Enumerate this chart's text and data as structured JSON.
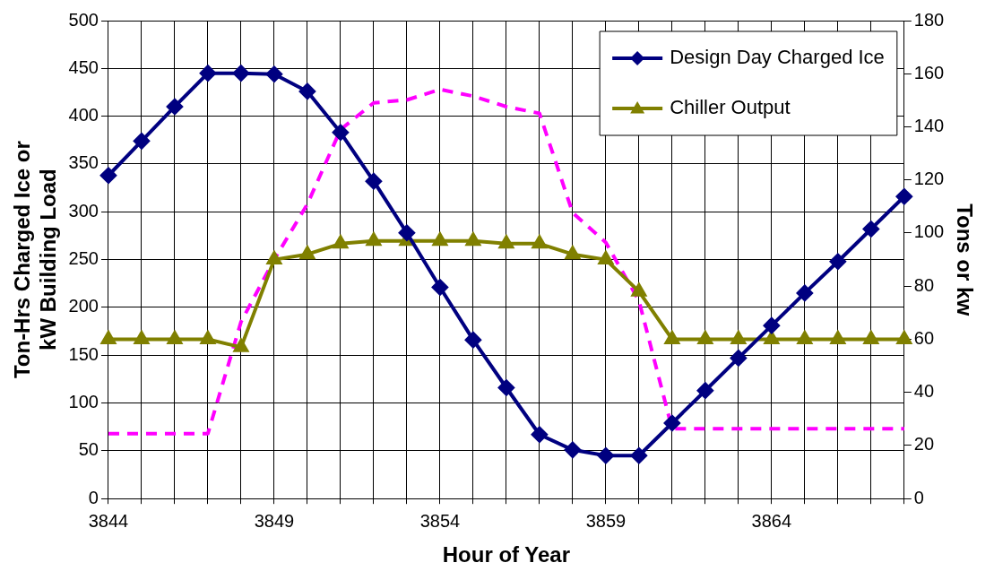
{
  "chart_data": {
    "type": "line",
    "xlabel": "Hour of Year",
    "ylabel": "Ton-Hrs Charged Ice or kW Building Load",
    "y2label": "Tons or kw",
    "x": [
      3844,
      3845,
      3846,
      3847,
      3848,
      3849,
      3850,
      3851,
      3852,
      3853,
      3854,
      3855,
      3856,
      3857,
      3858,
      3859,
      3860,
      3861,
      3862,
      3863,
      3864,
      3865,
      3866,
      3867,
      3868
    ],
    "series": [
      {
        "name": "Design Day Charged Ice",
        "color": "#000080",
        "marker": "diamond",
        "line_style": "solid",
        "values": [
          338,
          374,
          410,
          445,
          445,
          444,
          426,
          383,
          332,
          278,
          221,
          166,
          116,
          67,
          51,
          45,
          45,
          79,
          113,
          147,
          181,
          215,
          248,
          282,
          316
        ]
      },
      {
        "name": "Chiller Output",
        "color": "#808000",
        "marker": "triangle",
        "line_style": "solid",
        "axis": "y2",
        "values": [
          60,
          60,
          60,
          60,
          57,
          90,
          92,
          96,
          97,
          97,
          97,
          97,
          96,
          96,
          92,
          90,
          78,
          60,
          60,
          60,
          60,
          60,
          60,
          60,
          60
        ]
      },
      {
        "color": "#ff00ff",
        "marker": "none",
        "line_style": "dashed",
        "values": [
          68,
          68,
          68,
          68,
          185,
          250,
          308,
          386,
          414,
          417,
          428,
          421,
          410,
          403,
          299,
          268,
          207,
          73,
          73,
          73,
          73,
          73,
          73,
          73,
          73
        ]
      }
    ],
    "xlim": [
      3844,
      3868
    ],
    "xticks": [
      3844,
      {
        "value": 3845,
        "label": null
      },
      {
        "value": 3846,
        "label": null
      },
      {
        "value": 3847,
        "label": null
      },
      {
        "value": 3848,
        "label": null
      },
      3849,
      {
        "value": 3850,
        "label": null
      },
      {
        "value": 3851,
        "label": null
      },
      {
        "value": 3852,
        "label": null
      },
      {
        "value": 3853,
        "label": null
      },
      3854,
      {
        "value": 3855,
        "label": null
      },
      {
        "value": 3856,
        "label": null
      },
      {
        "value": 3857,
        "label": null
      },
      {
        "value": 3858,
        "label": null
      },
      3859,
      {
        "value": 3860,
        "label": null
      },
      {
        "value": 3861,
        "label": null
      },
      {
        "value": 3862,
        "label": null
      },
      {
        "value": 3863,
        "label": null
      },
      3864,
      {
        "value": 3865,
        "label": null
      },
      {
        "value": 3866,
        "label": null
      },
      {
        "value": 3867,
        "label": null
      },
      {
        "value": 3868,
        "label": null
      }
    ],
    "ylim": [
      0,
      500
    ],
    "yticks": [
      0,
      50,
      100,
      150,
      200,
      250,
      300,
      350,
      400,
      450,
      500
    ],
    "y2lim": [
      0,
      180
    ],
    "y2ticks": [
      0,
      20,
      40,
      60,
      80,
      100,
      120,
      140,
      160,
      180
    ],
    "grid": true,
    "legend": "top right"
  }
}
